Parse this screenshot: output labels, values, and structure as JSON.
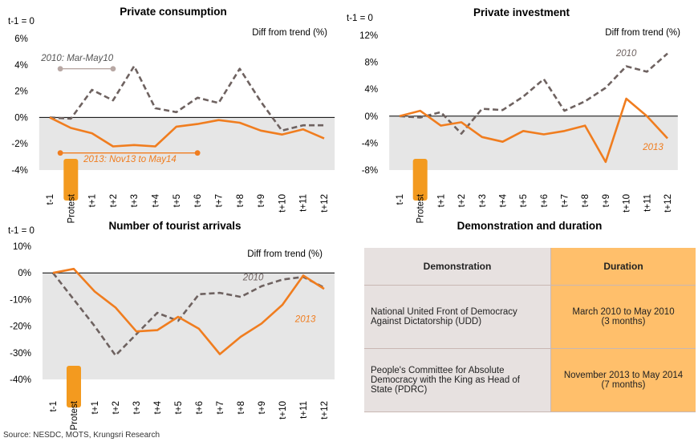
{
  "colors": {
    "series_2013": "#f07d1f",
    "series_2010": "#6e6260",
    "shade": "#e6e6e6",
    "protest_box": "#f39a1f",
    "grey_marker": "#b8a8a4"
  },
  "x_categories": [
    "t-1",
    "Protest",
    "t+1",
    "t+2",
    "t+3",
    "t+4",
    "t+5",
    "t+6",
    "t+7",
    "t+8",
    "t+9",
    "t+10",
    "t+11",
    "t+12"
  ],
  "chart_data": [
    {
      "id": "consumption",
      "type": "line",
      "title": "Private consumption",
      "base_label": "t-1 = 0",
      "unit_label": "Diff from trend (%)",
      "ylim": [
        -4,
        6
      ],
      "yticks": [
        -4,
        -2,
        0,
        2,
        4,
        6
      ],
      "yticklabels": [
        "-4%",
        "-2%",
        "0%",
        "2%",
        "4%",
        "6%"
      ],
      "categories": [
        "t-1",
        "Protest",
        "t+1",
        "t+2",
        "t+3",
        "t+4",
        "t+5",
        "t+6",
        "t+7",
        "t+8",
        "t+9",
        "t+10",
        "t+11",
        "t+12"
      ],
      "series": [
        {
          "key": "s2010",
          "style": "dashed",
          "values": [
            0,
            -0.1,
            2.1,
            1.3,
            3.9,
            0.7,
            0.4,
            1.5,
            1.1,
            3.7,
            1.2,
            -1.0,
            -0.6,
            -0.6
          ]
        },
        {
          "key": "s2013",
          "style": "solid",
          "values": [
            0,
            -0.8,
            -1.2,
            -2.2,
            -2.1,
            -2.2,
            -0.7,
            -0.5,
            -0.2,
            -0.4,
            -1.0,
            -1.3,
            -0.9,
            -1.6
          ]
        }
      ],
      "annotations": [
        {
          "text": "2010: Mar-May10",
          "range": [
            0.5,
            3
          ],
          "y": 3.7,
          "marker": "grey_marker",
          "label_y": 4.3,
          "label_x": 1.3
        },
        {
          "text": "2013: Nov13 to May14",
          "range": [
            0.5,
            7
          ],
          "y": -2.7,
          "marker": "series_2013",
          "label_y": -3.4,
          "label_x": 3.8
        }
      ]
    },
    {
      "id": "investment",
      "type": "line",
      "title": "Private investment",
      "base_label": "t-1 = 0",
      "unit_label": "Diff from trend (%)",
      "ylim": [
        -8,
        12
      ],
      "yticks": [
        -8,
        -4,
        0,
        4,
        8,
        12
      ],
      "yticklabels": [
        "-8%",
        "-4%",
        "0%",
        "4%",
        "8%",
        "12%"
      ],
      "categories": [
        "t-1",
        "Protest",
        "t+1",
        "t+2",
        "t+3",
        "t+4",
        "t+5",
        "t+6",
        "t+7",
        "t+8",
        "t+9",
        "t+10",
        "t+11",
        "t+12"
      ],
      "series": [
        {
          "key": "s2010",
          "style": "dashed",
          "values": [
            0,
            -0.2,
            0.6,
            -2.6,
            1.1,
            0.9,
            2.9,
            5.5,
            0.8,
            2.2,
            4.2,
            7.4,
            6.6,
            9.3
          ]
        },
        {
          "key": "s2013",
          "style": "solid",
          "values": [
            0,
            0.8,
            -1.4,
            -0.9,
            -3.1,
            -3.8,
            -2.2,
            -2.7,
            -2.2,
            -1.4,
            -6.8,
            2.6,
            0.0,
            -3.3
          ]
        }
      ],
      "series_labels": [
        {
          "text": "2010",
          "x": 11,
          "y": 8.9,
          "color": "series_2010"
        },
        {
          "text": "2013",
          "x": 12.3,
          "y": -5.0,
          "color": "series_2013"
        }
      ]
    },
    {
      "id": "tourists",
      "type": "line",
      "title": "Number of tourist arrivals",
      "base_label": "t-1 = 0",
      "unit_label": "Diff from trend (%)",
      "ylim": [
        -40,
        10
      ],
      "yticks": [
        -40,
        -30,
        -20,
        -10,
        0,
        10
      ],
      "yticklabels": [
        "-40%",
        "-30%",
        "-20%",
        "-10%",
        "0%",
        "10%"
      ],
      "categories": [
        "t-1",
        "Protest",
        "t+1",
        "t+2",
        "t+3",
        "t+4",
        "t+5",
        "t+6",
        "t+7",
        "t+8",
        "t+9",
        "t+10",
        "t+11",
        "t+12"
      ],
      "series": [
        {
          "key": "s2010",
          "style": "dashed",
          "values": [
            0,
            -10,
            -20,
            -31,
            -23,
            -15,
            -18,
            -8,
            -7.5,
            -9,
            -5,
            -2.5,
            -1.5,
            -5.5
          ]
        },
        {
          "key": "s2013",
          "style": "solid",
          "values": [
            0,
            1.5,
            -7,
            -13,
            -22,
            -21.5,
            -16.5,
            -21,
            -30.5,
            -24,
            -19,
            -12,
            -1,
            -6
          ]
        }
      ],
      "series_labels": [
        {
          "text": "2010",
          "x": 9.6,
          "y": -2.8,
          "color": "series_2010"
        },
        {
          "text": "2013",
          "x": 12.1,
          "y": -18.5,
          "color": "series_2013"
        }
      ]
    }
  ],
  "table": {
    "title": "Demonstration and duration",
    "headers": [
      "Demonstration",
      "Duration"
    ],
    "rows": [
      {
        "demo": "National United Front of Democracy Against Dictatorship (UDD)",
        "duration_line1": "March 2010 to May 2010",
        "duration_line2": "(3 months)"
      },
      {
        "demo": "People's Committee for Absolute Democracy with the King as Head of State (PDRC)",
        "duration_line1": "November 2013 to May 2014",
        "duration_line2": "(7 months)"
      }
    ]
  },
  "source": "Source: NESDC, MOTS, Krungsri Research"
}
